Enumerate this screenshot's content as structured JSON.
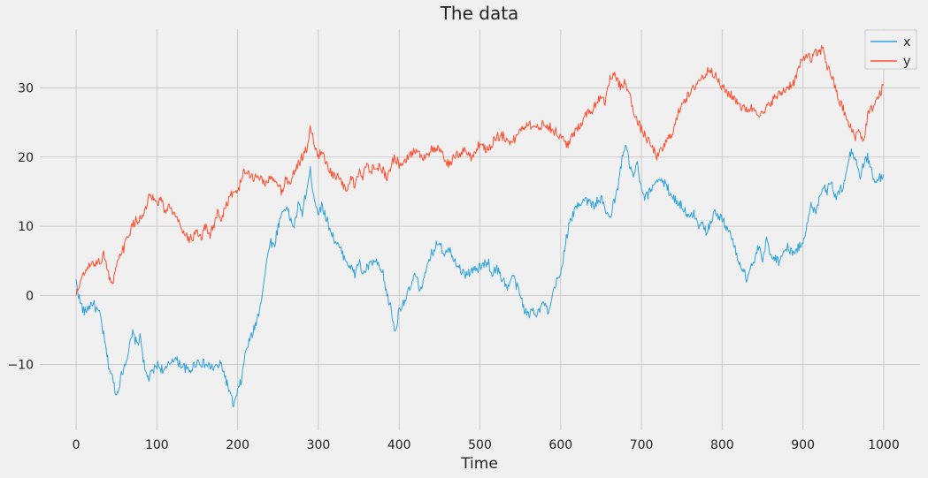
{
  "chart_data": {
    "type": "line",
    "title": "The data",
    "xlabel": "Time",
    "ylabel": "",
    "xlim": [
      -45,
      1045
    ],
    "ylim": [
      -19.5,
      38.5
    ],
    "xticks": [
      0,
      100,
      200,
      300,
      400,
      500,
      600,
      700,
      800,
      900,
      1000
    ],
    "yticks": [
      -10,
      0,
      10,
      20,
      30
    ],
    "grid": true,
    "legend_position": "top-right",
    "series": [
      {
        "name": "x",
        "color": "#30a2da",
        "keypoints": [
          [
            0,
            2
          ],
          [
            5,
            -1
          ],
          [
            10,
            -2.5
          ],
          [
            20,
            -1
          ],
          [
            30,
            -3
          ],
          [
            40,
            -10
          ],
          [
            45,
            -12
          ],
          [
            50,
            -14.5
          ],
          [
            55,
            -12
          ],
          [
            60,
            -10
          ],
          [
            65,
            -8
          ],
          [
            70,
            -5.5
          ],
          [
            75,
            -7
          ],
          [
            80,
            -6
          ],
          [
            85,
            -11
          ],
          [
            90,
            -12
          ],
          [
            95,
            -11
          ],
          [
            100,
            -10
          ],
          [
            110,
            -11
          ],
          [
            120,
            -9
          ],
          [
            130,
            -10
          ],
          [
            140,
            -11
          ],
          [
            150,
            -9.5
          ],
          [
            160,
            -10
          ],
          [
            170,
            -10.5
          ],
          [
            180,
            -10
          ],
          [
            190,
            -14
          ],
          [
            195,
            -16
          ],
          [
            200,
            -14
          ],
          [
            205,
            -12
          ],
          [
            210,
            -8
          ],
          [
            220,
            -5
          ],
          [
            225,
            -3
          ],
          [
            230,
            0
          ],
          [
            235,
            4
          ],
          [
            240,
            8
          ],
          [
            245,
            7
          ],
          [
            250,
            10
          ],
          [
            255,
            12
          ],
          [
            260,
            13
          ],
          [
            265,
            11
          ],
          [
            270,
            10
          ],
          [
            275,
            13
          ],
          [
            280,
            12
          ],
          [
            285,
            15
          ],
          [
            290,
            18
          ],
          [
            295,
            14
          ],
          [
            300,
            12
          ],
          [
            305,
            13
          ],
          [
            310,
            11
          ],
          [
            320,
            8
          ],
          [
            330,
            6
          ],
          [
            340,
            4
          ],
          [
            345,
            3
          ],
          [
            350,
            5
          ],
          [
            355,
            3
          ],
          [
            360,
            4
          ],
          [
            370,
            5
          ],
          [
            380,
            3
          ],
          [
            385,
            0
          ],
          [
            390,
            -2
          ],
          [
            395,
            -5.5
          ],
          [
            400,
            -2
          ],
          [
            405,
            -1
          ],
          [
            410,
            0
          ],
          [
            420,
            3
          ],
          [
            425,
            1
          ],
          [
            430,
            2
          ],
          [
            435,
            4
          ],
          [
            440,
            6
          ],
          [
            445,
            7
          ],
          [
            450,
            8
          ],
          [
            455,
            6
          ],
          [
            460,
            7
          ],
          [
            470,
            5
          ],
          [
            480,
            3
          ],
          [
            490,
            3.5
          ],
          [
            500,
            4
          ],
          [
            510,
            5
          ],
          [
            515,
            3
          ],
          [
            520,
            4
          ],
          [
            530,
            2
          ],
          [
            535,
            1
          ],
          [
            540,
            3
          ],
          [
            550,
            0
          ],
          [
            555,
            -2
          ],
          [
            560,
            -3
          ],
          [
            565,
            -2
          ],
          [
            570,
            -2.5
          ],
          [
            580,
            -1
          ],
          [
            585,
            -3
          ],
          [
            590,
            0
          ],
          [
            595,
            2
          ],
          [
            600,
            3
          ],
          [
            605,
            7
          ],
          [
            610,
            10
          ],
          [
            620,
            13
          ],
          [
            630,
            14
          ],
          [
            640,
            13
          ],
          [
            650,
            14
          ],
          [
            660,
            11
          ],
          [
            665,
            13
          ],
          [
            670,
            15
          ],
          [
            675,
            19
          ],
          [
            680,
            22
          ],
          [
            685,
            19
          ],
          [
            690,
            17
          ],
          [
            695,
            19
          ],
          [
            700,
            15
          ],
          [
            705,
            14
          ],
          [
            710,
            15
          ],
          [
            715,
            16
          ],
          [
            720,
            17
          ],
          [
            730,
            16
          ],
          [
            740,
            14
          ],
          [
            750,
            13
          ],
          [
            760,
            11
          ],
          [
            765,
            12
          ],
          [
            770,
            10
          ],
          [
            775,
            11
          ],
          [
            780,
            9
          ],
          [
            790,
            12
          ],
          [
            800,
            11
          ],
          [
            810,
            9
          ],
          [
            815,
            7
          ],
          [
            820,
            5
          ],
          [
            825,
            4
          ],
          [
            830,
            2.5
          ],
          [
            835,
            4
          ],
          [
            840,
            5
          ],
          [
            845,
            7
          ],
          [
            850,
            5
          ],
          [
            855,
            8
          ],
          [
            860,
            6
          ],
          [
            870,
            5
          ],
          [
            880,
            7
          ],
          [
            890,
            6
          ],
          [
            900,
            8
          ],
          [
            905,
            10
          ],
          [
            910,
            13
          ],
          [
            915,
            12
          ],
          [
            920,
            14
          ],
          [
            925,
            16
          ],
          [
            930,
            15
          ],
          [
            935,
            17
          ],
          [
            940,
            14
          ],
          [
            945,
            15
          ],
          [
            950,
            16
          ],
          [
            955,
            19
          ],
          [
            960,
            21
          ],
          [
            965,
            20
          ],
          [
            970,
            17
          ],
          [
            975,
            19
          ],
          [
            980,
            20
          ],
          [
            985,
            18
          ],
          [
            990,
            16
          ],
          [
            995,
            17
          ],
          [
            1000,
            17.5
          ]
        ]
      },
      {
        "name": "y",
        "color": "#fc4f30",
        "keypoints": [
          [
            0,
            0
          ],
          [
            5,
            2
          ],
          [
            10,
            3
          ],
          [
            15,
            4
          ],
          [
            20,
            4.5
          ],
          [
            30,
            5
          ],
          [
            35,
            6
          ],
          [
            40,
            3
          ],
          [
            45,
            1.5
          ],
          [
            50,
            4
          ],
          [
            55,
            6
          ],
          [
            60,
            7
          ],
          [
            65,
            9
          ],
          [
            70,
            10
          ],
          [
            75,
            11
          ],
          [
            80,
            11
          ],
          [
            85,
            12
          ],
          [
            90,
            14
          ],
          [
            95,
            14
          ],
          [
            100,
            13
          ],
          [
            105,
            14
          ],
          [
            110,
            12
          ],
          [
            115,
            13
          ],
          [
            120,
            12
          ],
          [
            125,
            11
          ],
          [
            130,
            10
          ],
          [
            135,
            9
          ],
          [
            140,
            8
          ],
          [
            150,
            9
          ],
          [
            155,
            8
          ],
          [
            160,
            10
          ],
          [
            165,
            8.5
          ],
          [
            170,
            10
          ],
          [
            175,
            12
          ],
          [
            180,
            11
          ],
          [
            185,
            13
          ],
          [
            190,
            14
          ],
          [
            195,
            15
          ],
          [
            200,
            15
          ],
          [
            205,
            17
          ],
          [
            210,
            18
          ],
          [
            220,
            17
          ],
          [
            230,
            17
          ],
          [
            235,
            16
          ],
          [
            240,
            17
          ],
          [
            250,
            16
          ],
          [
            255,
            15
          ],
          [
            260,
            17
          ],
          [
            265,
            16
          ],
          [
            270,
            18
          ],
          [
            275,
            19
          ],
          [
            280,
            20
          ],
          [
            285,
            21
          ],
          [
            290,
            24
          ],
          [
            295,
            22
          ],
          [
            300,
            20
          ],
          [
            305,
            21
          ],
          [
            310,
            19
          ],
          [
            315,
            18
          ],
          [
            320,
            17
          ],
          [
            325,
            17
          ],
          [
            330,
            16
          ],
          [
            335,
            15
          ],
          [
            340,
            17
          ],
          [
            345,
            16
          ],
          [
            350,
            18
          ],
          [
            355,
            17
          ],
          [
            360,
            19
          ],
          [
            365,
            18
          ],
          [
            370,
            19
          ],
          [
            380,
            18
          ],
          [
            385,
            17
          ],
          [
            390,
            19
          ],
          [
            395,
            20
          ],
          [
            400,
            19
          ],
          [
            410,
            20
          ],
          [
            420,
            21
          ],
          [
            430,
            20
          ],
          [
            440,
            21
          ],
          [
            450,
            21
          ],
          [
            460,
            19
          ],
          [
            470,
            20
          ],
          [
            480,
            21
          ],
          [
            490,
            20
          ],
          [
            500,
            22
          ],
          [
            510,
            21
          ],
          [
            520,
            23
          ],
          [
            530,
            23
          ],
          [
            540,
            22
          ],
          [
            550,
            24
          ],
          [
            560,
            25
          ],
          [
            570,
            24
          ],
          [
            580,
            25
          ],
          [
            590,
            24
          ],
          [
            600,
            23
          ],
          [
            605,
            22
          ],
          [
            610,
            22
          ],
          [
            620,
            24
          ],
          [
            630,
            26
          ],
          [
            640,
            27
          ],
          [
            645,
            28
          ],
          [
            650,
            29
          ],
          [
            655,
            28
          ],
          [
            660,
            31
          ],
          [
            665,
            32
          ],
          [
            670,
            31
          ],
          [
            675,
            30
          ],
          [
            680,
            31
          ],
          [
            685,
            29
          ],
          [
            690,
            27
          ],
          [
            695,
            25
          ],
          [
            700,
            24
          ],
          [
            705,
            23
          ],
          [
            710,
            22
          ],
          [
            715,
            21
          ],
          [
            720,
            20
          ],
          [
            725,
            21
          ],
          [
            730,
            22
          ],
          [
            735,
            23
          ],
          [
            740,
            24
          ],
          [
            745,
            26
          ],
          [
            750,
            28
          ],
          [
            760,
            29
          ],
          [
            770,
            31
          ],
          [
            780,
            32
          ],
          [
            785,
            33
          ],
          [
            790,
            32
          ],
          [
            795,
            31
          ],
          [
            800,
            30
          ],
          [
            810,
            29
          ],
          [
            820,
            28
          ],
          [
            825,
            27
          ],
          [
            830,
            27
          ],
          [
            840,
            27
          ],
          [
            850,
            26
          ],
          [
            855,
            27
          ],
          [
            860,
            28
          ],
          [
            870,
            29
          ],
          [
            880,
            30
          ],
          [
            890,
            31
          ],
          [
            895,
            33
          ],
          [
            900,
            34
          ],
          [
            905,
            35
          ],
          [
            910,
            34
          ],
          [
            915,
            35
          ],
          [
            920,
            35
          ],
          [
            925,
            36
          ],
          [
            930,
            33
          ],
          [
            935,
            32
          ],
          [
            940,
            30
          ],
          [
            945,
            28
          ],
          [
            950,
            27
          ],
          [
            955,
            25
          ],
          [
            960,
            24
          ],
          [
            965,
            23
          ],
          [
            970,
            24
          ],
          [
            975,
            22
          ],
          [
            980,
            26
          ],
          [
            985,
            27
          ],
          [
            990,
            28
          ],
          [
            995,
            29
          ],
          [
            1000,
            30.5
          ]
        ]
      }
    ]
  }
}
